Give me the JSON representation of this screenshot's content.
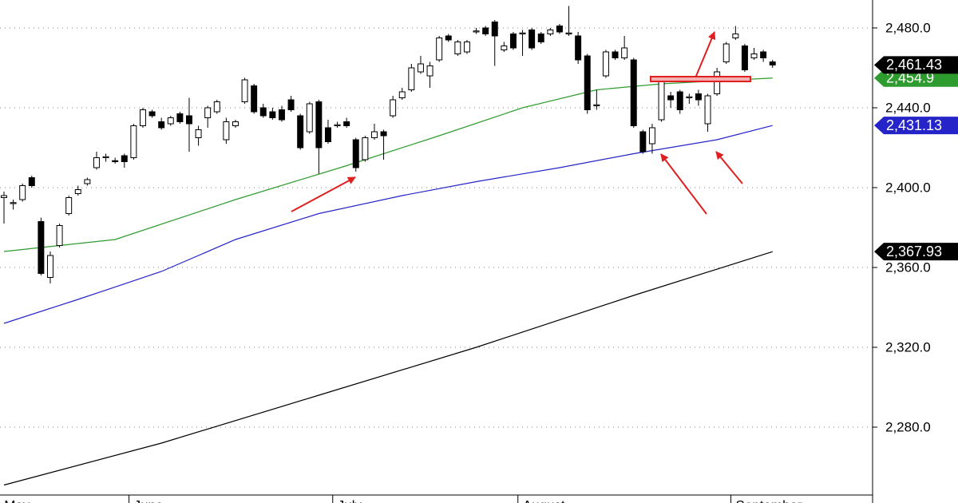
{
  "chart_data": {
    "type": "candlestick",
    "categories": [
      "May",
      null,
      null,
      null,
      null,
      null,
      null,
      null,
      null,
      null,
      null,
      null,
      null,
      null,
      "June",
      null,
      null,
      null,
      null,
      null,
      null,
      null,
      null,
      null,
      null,
      null,
      null,
      null,
      null,
      null,
      null,
      null,
      null,
      null,
      null,
      null,
      "July",
      null,
      null,
      null,
      null,
      null,
      null,
      null,
      null,
      null,
      null,
      null,
      null,
      null,
      null,
      null,
      null,
      null,
      null,
      null,
      "August",
      null,
      null,
      null,
      null,
      null,
      null,
      null,
      null,
      null,
      null,
      null,
      null,
      null,
      null,
      null,
      null,
      null,
      null,
      null,
      null,
      null,
      null,
      "September",
      null,
      null,
      null,
      null
    ],
    "open": [
      2395,
      2392,
      2394,
      2405,
      2383,
      2355,
      2371,
      2387,
      2397,
      2402,
      2410,
      2415,
      2413.5,
      2416,
      2415,
      2431,
      2438,
      2433,
      2432,
      2437,
      2436,
      2425,
      2435,
      2438,
      2424,
      2431,
      2443,
      2451,
      2440,
      2438,
      2439,
      2444,
      2436,
      2428,
      2443,
      2430,
      2431,
      2433,
      2424,
      2414,
      2425,
      2428,
      2436,
      2445,
      2449,
      2458,
      2456,
      2464,
      2476,
      2467,
      2468,
      2478,
      2480,
      2483,
      2469,
      2477,
      2477,
      2479,
      2477,
      2477,
      2481,
      2477,
      2476,
      2466,
      2441,
      2456,
      2468,
      2465,
      2464,
      2428,
      2422,
      2434,
      2446,
      2448,
      2445,
      2447,
      2432,
      2447,
      2463,
      2475,
      2471,
      2465,
      2468,
      2463
    ],
    "high": [
      2398,
      2394,
      2402,
      2406,
      2385,
      2368,
      2382,
      2396,
      2401,
      2405,
      2418,
      2417,
      2415,
      2417,
      2432,
      2440,
      2439,
      2435,
      2436,
      2438,
      2445,
      2431,
      2441,
      2444,
      2435,
      2434,
      2455,
      2452,
      2442,
      2440,
      2441,
      2446,
      2437,
      2443,
      2444,
      2434,
      2433,
      2435,
      2425,
      2426,
      2432,
      2429,
      2446,
      2450,
      2462,
      2466,
      2463,
      2476,
      2477,
      2474,
      2474,
      2480,
      2481,
      2484,
      2473,
      2478,
      2479,
      2480,
      2478,
      2480,
      2482,
      2491,
      2478,
      2467,
      2449,
      2469,
      2469,
      2476,
      2465,
      2429,
      2432,
      2455,
      2448,
      2449,
      2447,
      2449,
      2447,
      2460,
      2473,
      2481,
      2472,
      2470,
      2469,
      2464
    ],
    "low": [
      2382,
      2389,
      2393,
      2400,
      2356,
      2352,
      2370,
      2386,
      2396,
      2401,
      2409,
      2413,
      2412,
      2410,
      2414,
      2430,
      2435,
      2429,
      2431,
      2432,
      2418,
      2421,
      2430,
      2437,
      2422,
      2430,
      2442,
      2437,
      2435,
      2434,
      2433,
      2438,
      2419,
      2427,
      2407,
      2422,
      2430,
      2430,
      2408,
      2413,
      2424,
      2414,
      2435,
      2444,
      2448,
      2457,
      2450,
      2463,
      2473,
      2466,
      2467,
      2477,
      2476,
      2461,
      2468,
      2469,
      2466,
      2469,
      2472,
      2476,
      2477,
      2476,
      2462,
      2437,
      2439,
      2455,
      2464,
      2464,
      2430,
      2417,
      2417,
      2433,
      2440,
      2437,
      2442,
      2441,
      2428,
      2446,
      2462,
      2474,
      2458,
      2464,
      2463,
      2460
    ],
    "close": [
      2396,
      2392.5,
      2401,
      2401,
      2357,
      2366,
      2381,
      2395,
      2399,
      2404,
      2415,
      2415.5,
      2413,
      2413,
      2431,
      2439,
      2436,
      2430,
      2435,
      2433,
      2432,
      2429,
      2440,
      2443,
      2433,
      2433,
      2454,
      2438,
      2436,
      2435,
      2434,
      2439,
      2420,
      2442,
      2420,
      2423,
      2431.5,
      2431,
      2410,
      2425,
      2428,
      2426,
      2444,
      2448,
      2460,
      2462,
      2461,
      2475,
      2474,
      2473,
      2473,
      2478.5,
      2477,
      2476,
      2471,
      2470,
      2477.5,
      2470,
      2473,
      2479,
      2478,
      2477.5,
      2464,
      2439,
      2441.5,
      2468,
      2465,
      2470,
      2431,
      2418,
      2430,
      2453,
      2444,
      2439,
      2445.5,
      2444,
      2446,
      2458,
      2472,
      2477,
      2459,
      2467,
      2465,
      2461.43
    ],
    "close_label": "2,461.43",
    "lines": [
      {
        "color": "#2e9b2e",
        "x": [
          0,
          12,
          25,
          37,
          47,
          56,
          64,
          71,
          83
        ],
        "values": [
          2368,
          2374,
          2394,
          2411,
          2426,
          2440,
          2449,
          2452,
          2454.9
        ],
        "last_label": "2,454.9"
      },
      {
        "color": "#2424c8",
        "x": [
          0,
          8,
          17,
          25,
          34,
          43,
          51,
          60,
          68,
          77,
          83
        ],
        "values": [
          2332,
          2344,
          2358,
          2374,
          2387,
          2396,
          2403,
          2410,
          2417,
          2424,
          2431.13
        ],
        "last_label": "2,431.13"
      },
      {
        "color": "#000000",
        "x": [
          0,
          17,
          34,
          51,
          68,
          83
        ],
        "values": [
          2251,
          2272,
          2296,
          2320,
          2346,
          2367.93
        ],
        "last_label": "2,367.93"
      }
    ],
    "xlim": [
      -0.43,
      93.8
    ],
    "ylim": [
      2246,
      2494
    ],
    "yticks": [
      {
        "value": 2280,
        "label": "2,280.0"
      },
      {
        "value": 2320,
        "label": "2,320.0"
      },
      {
        "value": 2360,
        "label": "2,360.0"
      },
      {
        "value": 2400,
        "label": "2,400.0"
      },
      {
        "value": 2440,
        "label": "2,440.0"
      },
      {
        "value": 2480,
        "label": "2,480.0"
      }
    ],
    "grid": true
  }
}
